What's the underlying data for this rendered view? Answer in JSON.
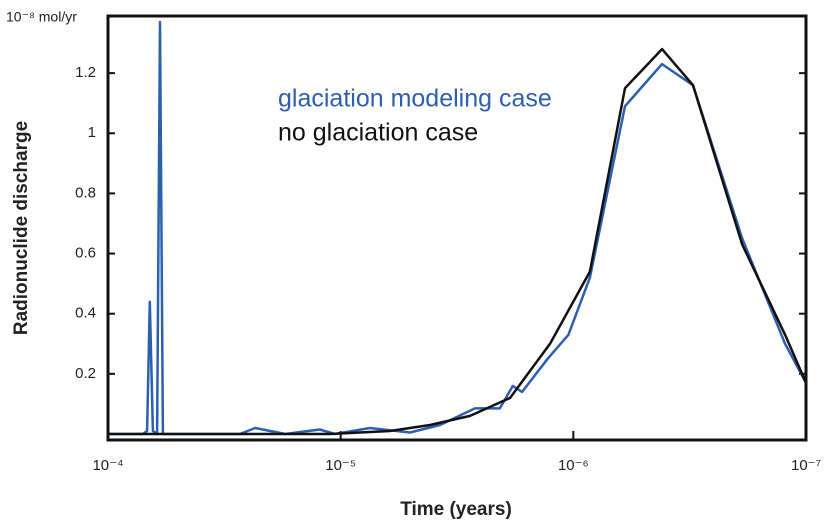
{
  "chart_data": {
    "type": "line",
    "unit_label": "10⁻⁸ mol/yr",
    "ylabel": "Radionuclide discharge",
    "xlabel": "Time (years)",
    "log_x": true,
    "xlim": [
      0.0001,
      1e-07
    ],
    "xticks": [
      {
        "value": 0.0001,
        "label": "10⁻⁴"
      },
      {
        "value": 1e-05,
        "label": "10⁻⁵"
      },
      {
        "value": 1e-06,
        "label": "10⁻⁶"
      },
      {
        "value": 1e-07,
        "label": "10⁻⁷"
      }
    ],
    "ylim": [
      -0.02,
      1.39
    ],
    "yticks": [
      0.2,
      0.4,
      0.6,
      0.8,
      1.0,
      1.2
    ],
    "series": [
      {
        "name": "glaciation modeling case",
        "color": "#2d5fb0",
        "x": [
          0.0001,
          7.08e-05,
          6.79e-05,
          6.61e-05,
          6.41e-05,
          6.15e-05,
          5.98e-05,
          5.81e-05,
          2.71e-05,
          2.33e-05,
          1.73e-05,
          1.23e-05,
          1.06e-05,
          7.48e-06,
          5.04e-06,
          3.74e-06,
          2.65e-06,
          2.07e-06,
          1.82e-06,
          1.66e-06,
          1.29e-06,
          1.05e-06,
          8.49e-07,
          6e-07,
          4.16e-07,
          3.06e-07,
          1.88e-07,
          1.23e-07,
          1e-07
        ],
        "values": [
          0,
          0,
          0.01,
          0.44,
          0.01,
          0,
          1.37,
          0,
          0,
          0.02,
          0,
          0.015,
          0,
          0.02,
          0.005,
          0.03,
          0.085,
          0.085,
          0.16,
          0.14,
          0.25,
          0.33,
          0.52,
          1.09,
          1.23,
          1.16,
          0.65,
          0.3,
          0.17
        ]
      },
      {
        "name": "no glaciation case",
        "color": "#111111",
        "x": [
          0.0001,
          1.11e-05,
          6.14e-06,
          4.13e-06,
          2.78e-06,
          1.87e-06,
          1.26e-06,
          8.49e-07,
          6e-07,
          4.16e-07,
          3.06e-07,
          1.88e-07,
          1.23e-07,
          1e-07
        ],
        "values": [
          0,
          0,
          0.01,
          0.03,
          0.06,
          0.12,
          0.3,
          0.54,
          1.15,
          1.28,
          1.16,
          0.63,
          0.33,
          0.17
        ]
      }
    ]
  }
}
